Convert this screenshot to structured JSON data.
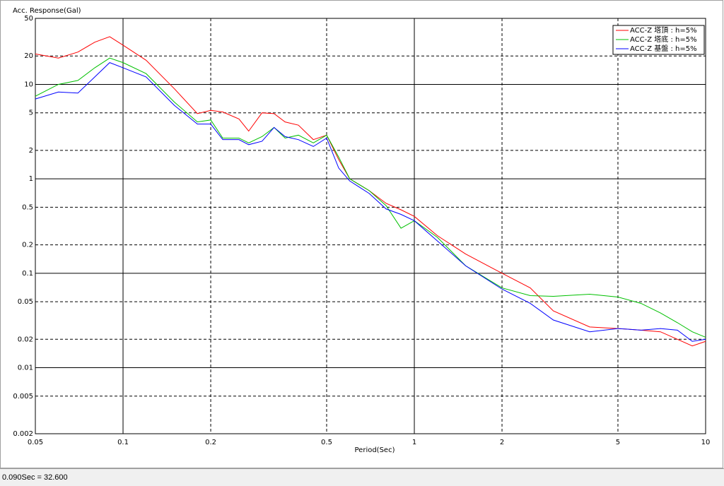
{
  "chart_data": {
    "type": "line",
    "y_label": "Acc. Response(Gal)",
    "x_label": "Period(Sec)",
    "log_x": true,
    "log_y": true,
    "grid": true,
    "legend": "upper right",
    "x": [
      0.05,
      0.06,
      0.07,
      0.08,
      0.09,
      0.1,
      0.12,
      0.15,
      0.18,
      0.2,
      0.22,
      0.25,
      0.27,
      0.3,
      0.33,
      0.36,
      0.4,
      0.45,
      0.5,
      0.55,
      0.6,
      0.7,
      0.8,
      0.9,
      1,
      1.2,
      1.5,
      2,
      2.5,
      3,
      4,
      5,
      6,
      7,
      8,
      9,
      10
    ],
    "series": [
      {
        "name": "ACC-Z 塔頂 : h=5%",
        "color": "#ff0000",
        "values": [
          21,
          19,
          22,
          28,
          32,
          26,
          18,
          9,
          4.9,
          5.3,
          5.1,
          4.3,
          3.2,
          5,
          4.9,
          4,
          3.7,
          2.6,
          2.9,
          1.6,
          1.0,
          0.75,
          0.55,
          0.47,
          0.4,
          0.25,
          0.16,
          0.1,
          0.07,
          0.04,
          0.027,
          0.026,
          0.025,
          0.024,
          0.02,
          0.017,
          0.019
        ]
      },
      {
        "name": "ACC-Z 塔底 : h=5%",
        "color": "#00c000",
        "values": [
          7.5,
          10,
          11,
          15,
          19,
          17,
          13,
          6.5,
          4,
          4.2,
          2.7,
          2.7,
          2.4,
          2.8,
          3.5,
          2.7,
          2.9,
          2.4,
          2.9,
          1.7,
          1.0,
          0.75,
          0.52,
          0.3,
          0.36,
          0.24,
          0.12,
          0.07,
          0.058,
          0.057,
          0.06,
          0.056,
          0.048,
          0.038,
          0.03,
          0.024,
          0.021
        ]
      },
      {
        "name": "ACC-Z 基盤 : h=5%",
        "color": "#0000ff",
        "values": [
          7,
          8.3,
          8.1,
          12,
          17,
          15,
          12,
          6,
          3.8,
          3.8,
          2.6,
          2.6,
          2.3,
          2.5,
          3.5,
          2.8,
          2.6,
          2.2,
          2.7,
          1.3,
          0.95,
          0.7,
          0.48,
          0.42,
          0.36,
          0.22,
          0.12,
          0.068,
          0.048,
          0.032,
          0.024,
          0.026,
          0.025,
          0.026,
          0.025,
          0.019,
          0.02
        ]
      }
    ],
    "xlim": [
      0.05,
      10
    ],
    "xticks": [
      0.05,
      0.1,
      0.2,
      0.5,
      1,
      2,
      5,
      10
    ],
    "ylim": [
      0.002,
      50
    ],
    "yticks": [
      50,
      20,
      10,
      5,
      2,
      1,
      0.5,
      0.2,
      0.1,
      0.05,
      0.02,
      0.01,
      0.005,
      0.002
    ]
  },
  "status_bar": {
    "text": "0.090Sec = 32.600"
  }
}
